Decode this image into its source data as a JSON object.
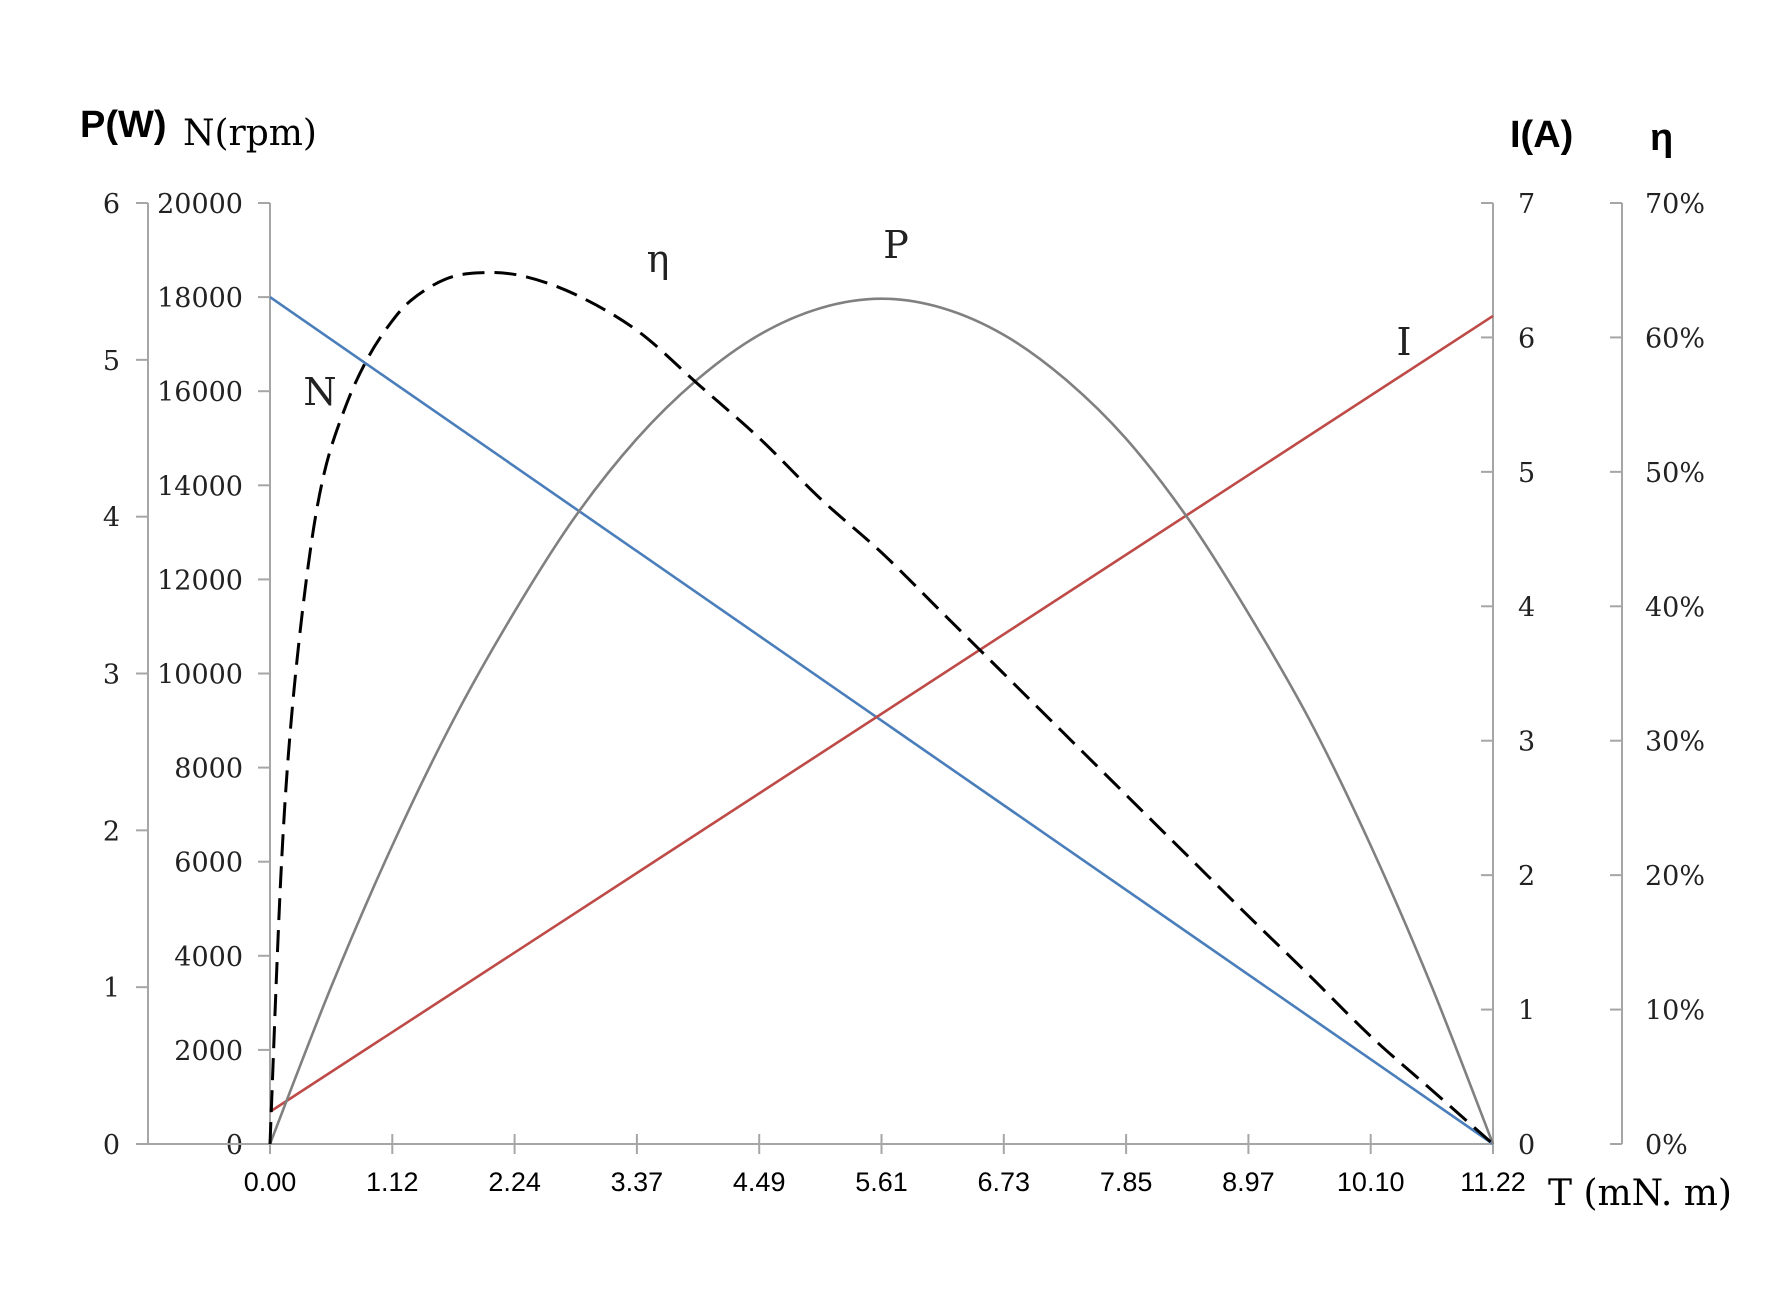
{
  "chart_data": {
    "type": "line",
    "x_axis": {
      "label": "T (mN. m)",
      "ticks": [
        "0.00",
        "1.12",
        "2.24",
        "3.37",
        "4.49",
        "5.61",
        "6.73",
        "7.85",
        "8.97",
        "10.10",
        "11.22"
      ],
      "range": [
        0,
        11.22
      ]
    },
    "axes": {
      "p": {
        "label": "P(W)",
        "range": [
          0,
          6
        ],
        "ticks": [
          "0",
          "1",
          "2",
          "3",
          "4",
          "5",
          "6"
        ]
      },
      "n": {
        "label": "N(rpm)",
        "range": [
          0,
          20000
        ],
        "ticks": [
          "0",
          "2000",
          "4000",
          "6000",
          "8000",
          "10000",
          "12000",
          "14000",
          "16000",
          "18000",
          "20000"
        ]
      },
      "i": {
        "label": "I(A)",
        "range": [
          0,
          7
        ],
        "ticks": [
          "0",
          "1",
          "2",
          "3",
          "4",
          "5",
          "6",
          "7"
        ]
      },
      "eta": {
        "label": "η",
        "range": [
          0,
          0.7
        ],
        "ticks": [
          "0%",
          "10%",
          "20%",
          "30%",
          "40%",
          "50%",
          "60%",
          "70%"
        ]
      }
    },
    "series": [
      {
        "name": "N",
        "axis": "n",
        "color": "#4a7ebb",
        "style": "solid",
        "x": [
          0,
          11.22
        ],
        "y": [
          18000,
          0
        ]
      },
      {
        "name": "I",
        "axis": "i",
        "color": "#be4b48",
        "style": "solid",
        "x": [
          0,
          11.22
        ],
        "y": [
          0.24,
          6.16
        ]
      },
      {
        "name": "P",
        "axis": "p",
        "color": "#808080",
        "style": "solid",
        "x": [
          0,
          0.56,
          1.12,
          1.68,
          2.24,
          2.8,
          3.37,
          3.93,
          4.49,
          5.05,
          5.61,
          6.17,
          6.73,
          7.29,
          7.85,
          8.41,
          8.97,
          9.54,
          10.1,
          10.66,
          11.22
        ],
        "y": [
          0,
          1.0,
          1.9,
          2.7,
          3.39,
          4.0,
          4.5,
          4.88,
          5.16,
          5.33,
          5.39,
          5.33,
          5.16,
          4.88,
          4.5,
          4.0,
          3.39,
          2.7,
          1.9,
          1.0,
          0
        ]
      },
      {
        "name": "η",
        "axis": "eta",
        "color": "#000000",
        "style": "dashed",
        "x": [
          0,
          0.1,
          0.2,
          0.35,
          0.5,
          0.7,
          0.9,
          1.1,
          1.3,
          1.6,
          1.9,
          2.3,
          2.8,
          3.37,
          3.93,
          4.49,
          5.05,
          5.61,
          6.17,
          6.73,
          7.29,
          7.85,
          8.41,
          8.97,
          9.54,
          10.1,
          10.66,
          11.22
        ],
        "y": [
          0,
          0.2,
          0.32,
          0.43,
          0.5,
          0.55,
          0.585,
          0.61,
          0.628,
          0.643,
          0.648,
          0.646,
          0.632,
          0.605,
          0.565,
          0.525,
          0.48,
          0.44,
          0.395,
          0.35,
          0.305,
          0.26,
          0.215,
          0.17,
          0.125,
          0.08,
          0.04,
          0
        ]
      }
    ],
    "curve_labels": [
      {
        "text": "N",
        "series": "N"
      },
      {
        "text": "η",
        "series": "η"
      },
      {
        "text": "P",
        "series": "P"
      },
      {
        "text": "I",
        "series": "I"
      }
    ],
    "grid": false,
    "legend": "none"
  }
}
